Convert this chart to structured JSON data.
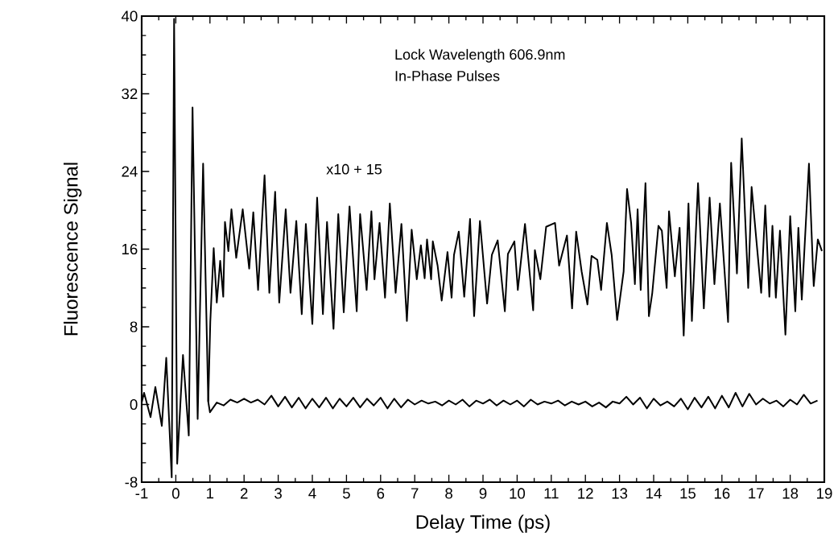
{
  "chart_data": {
    "type": "line",
    "xlabel": "Delay Time (ps)",
    "ylabel": "Fluorescence Signal",
    "annotations": [
      "Lock Wavelength 606.9nm",
      "In-Phase Pulses",
      "x10 + 15"
    ],
    "xlim": [
      -1,
      19
    ],
    "xticks": [
      -1,
      0,
      1,
      2,
      3,
      4,
      5,
      6,
      7,
      8,
      9,
      10,
      11,
      12,
      13,
      14,
      15,
      16,
      17,
      18,
      19
    ],
    "ylim": [
      -8,
      40
    ],
    "yticks": [
      -8,
      0,
      8,
      16,
      24,
      32,
      40
    ],
    "grid": false,
    "marker": "none",
    "line_style": "solid",
    "series": [
      {
        "color": "#000000",
        "x": [
          -1.0,
          -0.93,
          -0.74,
          -0.6,
          -0.41,
          -0.28,
          -0.12,
          -0.05,
          0.04,
          0.21,
          0.38,
          0.49,
          0.64,
          0.8,
          0.95,
          1.0,
          1.2,
          1.4,
          1.6,
          1.8,
          2.0,
          2.2,
          2.4,
          2.6,
          2.8,
          3.0,
          3.2,
          3.4,
          3.6,
          3.8,
          4.0,
          4.2,
          4.4,
          4.6,
          4.8,
          5.0,
          5.2,
          5.4,
          5.6,
          5.8,
          6.0,
          6.2,
          6.4,
          6.6,
          6.8,
          7.0,
          7.2,
          7.4,
          7.6,
          7.8,
          8.0,
          8.2,
          8.4,
          8.6,
          8.8,
          9.0,
          9.2,
          9.4,
          9.6,
          9.8,
          10.0,
          10.2,
          10.4,
          10.6,
          10.8,
          11.0,
          11.2,
          11.4,
          11.6,
          11.8,
          12.0,
          12.2,
          12.4,
          12.6,
          12.8,
          13.0,
          13.2,
          13.4,
          13.6,
          13.8,
          14.0,
          14.2,
          14.4,
          14.6,
          14.8,
          15.0,
          15.2,
          15.4,
          15.6,
          15.8,
          16.0,
          16.2,
          16.4,
          16.6,
          16.8,
          17.0,
          17.2,
          17.4,
          17.6,
          17.8,
          18.0,
          18.2,
          18.4,
          18.6,
          18.8
        ],
        "values": [
          0.2,
          1.2,
          -1.3,
          1.8,
          -2.2,
          4.8,
          -7.5,
          39.7,
          -6.1,
          5.1,
          -3.2,
          30.6,
          -1.5,
          24.8,
          0.3,
          -0.8,
          0.2,
          -0.1,
          0.5,
          0.2,
          0.6,
          0.2,
          0.5,
          0.0,
          0.9,
          -0.2,
          0.8,
          -0.3,
          0.7,
          -0.4,
          0.6,
          -0.3,
          0.7,
          -0.4,
          0.6,
          -0.2,
          0.7,
          -0.3,
          0.6,
          -0.1,
          0.7,
          -0.4,
          0.6,
          -0.3,
          0.5,
          0.0,
          0.4,
          0.1,
          0.3,
          -0.1,
          0.4,
          0.0,
          0.5,
          -0.2,
          0.4,
          0.1,
          0.5,
          -0.1,
          0.4,
          0.0,
          0.4,
          -0.2,
          0.5,
          0.0,
          0.3,
          0.1,
          0.4,
          -0.1,
          0.3,
          0.0,
          0.3,
          -0.2,
          0.2,
          -0.3,
          0.3,
          0.1,
          0.8,
          0.0,
          0.7,
          -0.4,
          0.6,
          -0.1,
          0.3,
          -0.2,
          0.6,
          -0.5,
          0.7,
          -0.3,
          0.8,
          -0.4,
          0.9,
          -0.3,
          1.2,
          -0.2,
          1.1,
          0.0,
          0.6,
          0.1,
          0.4,
          -0.2,
          0.5,
          0.0,
          1.0,
          0.1,
          0.4
        ]
      },
      {
        "color": "#000000",
        "x": [
          0.95,
          1.01,
          1.11,
          1.2,
          1.3,
          1.39,
          1.44,
          1.54,
          1.63,
          1.77,
          1.96,
          2.15,
          2.27,
          2.41,
          2.6,
          2.74,
          2.91,
          3.03,
          3.22,
          3.36,
          3.53,
          3.69,
          3.81,
          4.0,
          4.14,
          4.31,
          4.43,
          4.62,
          4.76,
          4.92,
          5.09,
          5.3,
          5.4,
          5.59,
          5.73,
          5.82,
          5.97,
          6.13,
          6.27,
          6.44,
          6.61,
          6.77,
          6.91,
          7.06,
          7.18,
          7.29,
          7.36,
          7.48,
          7.53,
          7.67,
          7.79,
          7.96,
          8.08,
          8.15,
          8.29,
          8.45,
          8.62,
          8.74,
          8.91,
          9.12,
          9.26,
          9.43,
          9.64,
          9.73,
          9.92,
          10.02,
          10.23,
          10.47,
          10.52,
          10.68,
          10.85,
          11.11,
          11.23,
          11.46,
          11.61,
          11.73,
          11.89,
          12.06,
          12.18,
          12.35,
          12.46,
          12.63,
          12.77,
          12.93,
          13.12,
          13.22,
          13.34,
          13.45,
          13.53,
          13.62,
          13.76,
          13.86,
          13.96,
          14.14,
          14.24,
          14.38,
          14.45,
          14.62,
          14.76,
          14.88,
          15.02,
          15.12,
          15.3,
          15.47,
          15.64,
          15.78,
          15.94,
          16.18,
          16.27,
          16.44,
          16.58,
          16.77,
          16.87,
          17.01,
          17.15,
          17.27,
          17.39,
          17.48,
          17.58,
          17.7,
          17.86,
          18.0,
          18.15,
          18.24,
          18.34,
          18.55,
          18.67,
          18.69,
          18.81,
          18.93
        ],
        "values": [
          0.3,
          8.5,
          16.1,
          10.5,
          14.8,
          11.1,
          18.8,
          15.8,
          20.1,
          15.1,
          20.1,
          14.0,
          19.8,
          11.8,
          23.6,
          11.5,
          21.9,
          10.5,
          20.1,
          11.5,
          18.9,
          9.3,
          18.6,
          8.3,
          21.3,
          9.3,
          18.8,
          7.8,
          19.6,
          9.5,
          20.4,
          9.6,
          19.6,
          11.8,
          19.9,
          12.9,
          18.7,
          11.0,
          20.7,
          11.5,
          18.6,
          8.6,
          18.0,
          12.9,
          16.4,
          13.0,
          17.0,
          12.9,
          16.8,
          14.3,
          10.7,
          15.7,
          11.0,
          15.4,
          17.8,
          11.1,
          19.1,
          9.1,
          18.9,
          10.4,
          15.4,
          16.9,
          9.6,
          15.5,
          16.8,
          11.8,
          18.6,
          9.7,
          15.9,
          12.9,
          18.3,
          18.7,
          14.3,
          17.4,
          9.9,
          17.8,
          13.7,
          10.3,
          15.3,
          14.9,
          11.8,
          18.7,
          15.4,
          8.7,
          13.7,
          22.2,
          18.7,
          12.4,
          20.1,
          11.8,
          22.8,
          9.1,
          11.5,
          18.4,
          17.9,
          12.0,
          19.9,
          13.2,
          18.2,
          7.1,
          20.7,
          8.6,
          22.8,
          9.9,
          21.3,
          12.4,
          20.7,
          8.5,
          24.9,
          13.5,
          27.4,
          12.0,
          22.4,
          16.9,
          11.5,
          20.5,
          11.1,
          18.4,
          11.0,
          17.9,
          7.2,
          19.4,
          9.6,
          18.2,
          10.8,
          24.8,
          13.7,
          12.2,
          17.0,
          15.8
        ]
      }
    ]
  }
}
